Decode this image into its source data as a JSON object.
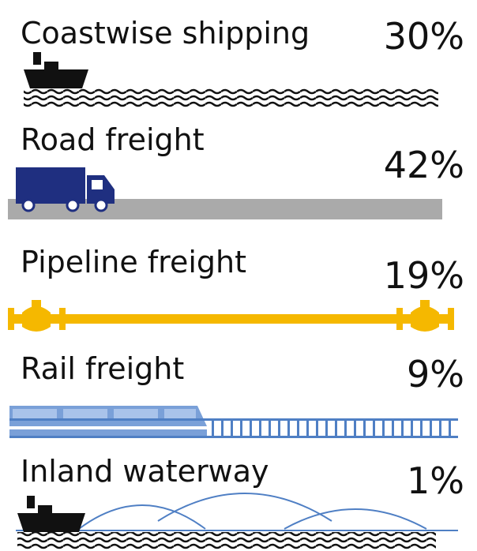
{
  "items": [
    {
      "label": "Coastwise shipping",
      "share": "30%"
    },
    {
      "label": "Road freight",
      "share": "42%"
    },
    {
      "label": "Pipeline freight",
      "share": "19%"
    },
    {
      "label": "Rail freight",
      "share": "9%"
    },
    {
      "label": "Inland waterway",
      "share": "1%"
    }
  ]
}
